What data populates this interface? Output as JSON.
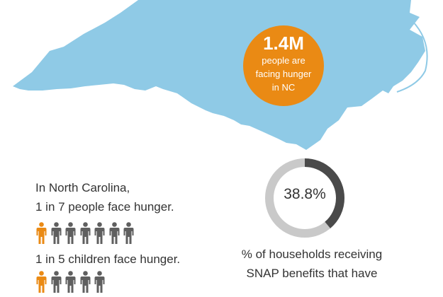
{
  "colors": {
    "map_fill": "#8fcae6",
    "accent": "#ea8a14",
    "person_gray": "#5f5f5f",
    "donut_track": "#c9c9c9",
    "donut_fill": "#4a4a4a",
    "text": "#333333"
  },
  "badge": {
    "big": "1.4M",
    "line1": "people are",
    "line2": "facing hunger",
    "line3": "in NC"
  },
  "stats": {
    "line1": "In North Carolina,",
    "line2": "1 in 7 people face hunger.",
    "line3": "1 in 5 children face hunger."
  },
  "icon_rows": [
    {
      "total": 7,
      "highlighted": 1
    },
    {
      "total": 5,
      "highlighted": 1
    }
  ],
  "icons": {
    "person": "person-icon"
  },
  "donut": {
    "label": "38.8%",
    "fraction": 0.388
  },
  "snap": {
    "line1": "% of households receiving",
    "line2": "SNAP benefits that have"
  }
}
